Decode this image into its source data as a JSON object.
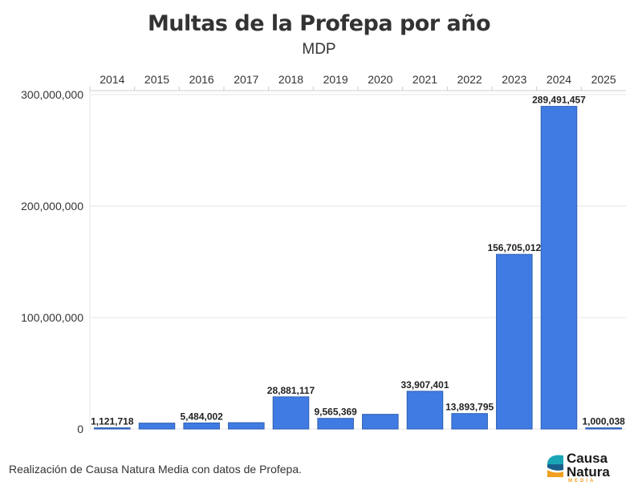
{
  "chart_data": {
    "type": "bar",
    "title": "Multas de la Profepa por año",
    "subtitle": "MDP",
    "categories": [
      "2014",
      "2015",
      "2016",
      "2017",
      "2018",
      "2019",
      "2020",
      "2021",
      "2022",
      "2023",
      "2024",
      "2025"
    ],
    "values": [
      1121718,
      5300000,
      5484002,
      5700000,
      28881117,
      9565369,
      13200000,
      33907401,
      13893795,
      156705012,
      289491457,
      1000038
    ],
    "data_labels": [
      "1,121,718",
      "",
      "5,484,002",
      "",
      "28,881,117",
      "9,565,369",
      "",
      "33,907,401",
      "13,893,795",
      "156,705,012",
      "289,491,457",
      "1,000,038"
    ],
    "y_ticks": [
      {
        "value": 0,
        "label": "0"
      },
      {
        "value": 100000000,
        "label": "100,000,000"
      },
      {
        "value": 200000000,
        "label": "200,000,000"
      },
      {
        "value": 300000000,
        "label": "300,000,000"
      }
    ],
    "ylim": [
      0,
      300000000
    ],
    "x_axis_position": "top",
    "grid": true,
    "bar_color": "#3f7be3"
  },
  "footer": {
    "source_text": "Realización de Causa Natura Media con datos de Profepa."
  },
  "logo": {
    "line1": "Causa",
    "line2": "Natura",
    "line3": "MEDIA"
  }
}
